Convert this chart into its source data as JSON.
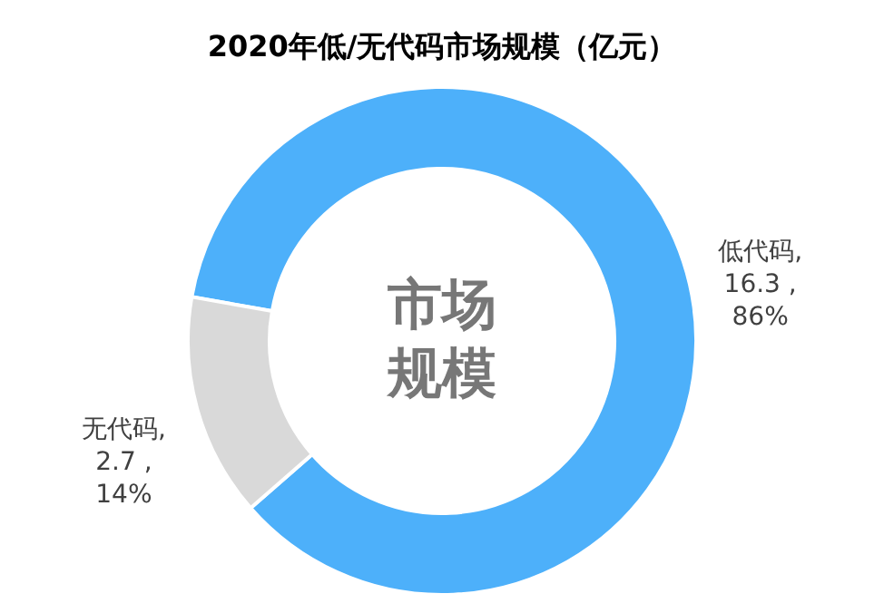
{
  "chart_data": {
    "type": "donut",
    "title": "2020年低/无代码市场规模（亿元）",
    "categories": [
      "低代码",
      "无代码"
    ],
    "values": [
      16.3,
      2.7
    ],
    "value_labels": [
      ",\n16.3 ,\n86%",
      ",\n2.7 ,\n14%"
    ],
    "colors": [
      "#4db0fa",
      "#d9d9d9"
    ],
    "annotations": [
      "市场",
      "规模"
    ],
    "legend": false
  }
}
